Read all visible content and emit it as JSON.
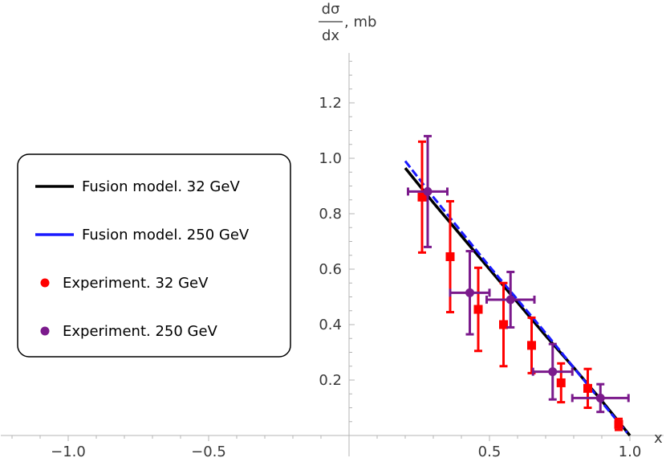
{
  "chart_data": {
    "type": "scatter",
    "xlabel": "x",
    "ylabel": {
      "numerator": "dσ",
      "denominator": "dx",
      "unit": ", mb"
    },
    "xlim": [
      -1.24,
      1.12
    ],
    "ylim": [
      0,
      1.38
    ],
    "x_ticks": [
      {
        "value": -1.0,
        "label": "−1.0"
      },
      {
        "value": -0.5,
        "label": "−0.5"
      },
      {
        "value": 0.5,
        "label": "0.5"
      },
      {
        "value": 1.0,
        "label": "1.0"
      }
    ],
    "y_ticks": [
      {
        "value": 0.2,
        "label": "0.2"
      },
      {
        "value": 0.4,
        "label": "0.4"
      },
      {
        "value": 0.6,
        "label": "0.6"
      },
      {
        "value": 0.8,
        "label": "0.8"
      },
      {
        "value": 1.0,
        "label": "1.0"
      },
      {
        "value": 1.2,
        "label": "1.2"
      }
    ],
    "grid": false,
    "legend_position": "left",
    "series": [
      {
        "name": "Fusion model. 32 GeV",
        "kind": "line",
        "color": "#000000",
        "dashed": false,
        "points": [
          [
            0.2,
            0.965
          ],
          [
            0.3,
            0.84
          ],
          [
            0.4,
            0.72
          ],
          [
            0.5,
            0.6
          ],
          [
            0.6,
            0.48
          ],
          [
            0.7,
            0.36
          ],
          [
            0.8,
            0.245
          ],
          [
            0.9,
            0.125
          ],
          [
            1.0,
            0.0
          ]
        ]
      },
      {
        "name": "Fusion model. 250 GeV",
        "kind": "line",
        "color": "#1a1aff",
        "dashed": true,
        "points": [
          [
            0.2,
            0.99
          ],
          [
            0.3,
            0.86
          ],
          [
            0.4,
            0.735
          ],
          [
            0.5,
            0.61
          ],
          [
            0.6,
            0.49
          ],
          [
            0.7,
            0.37
          ],
          [
            0.8,
            0.245
          ],
          [
            0.9,
            0.12
          ],
          [
            0.99,
            0.01
          ]
        ]
      },
      {
        "name": "Experiment. 32 GeV",
        "kind": "errorbar",
        "marker": "square",
        "color": "#ff0000",
        "points": [
          {
            "x": 0.26,
            "y": 0.86,
            "yerr": 0.2
          },
          {
            "x": 0.36,
            "y": 0.645,
            "yerr": 0.2
          },
          {
            "x": 0.46,
            "y": 0.455,
            "yerr": 0.15
          },
          {
            "x": 0.55,
            "y": 0.4,
            "yerr": 0.15
          },
          {
            "x": 0.65,
            "y": 0.325,
            "yerr": 0.1
          },
          {
            "x": 0.755,
            "y": 0.19,
            "yerr": 0.07
          },
          {
            "x": 0.85,
            "y": 0.17,
            "yerr": 0.07
          },
          {
            "x": 0.96,
            "y": 0.04,
            "yerr": 0.02
          }
        ]
      },
      {
        "name": "Experiment. 250 GeV",
        "kind": "errorbar",
        "marker": "circle",
        "color": "#7b1a8c",
        "points": [
          {
            "x": 0.28,
            "y": 0.88,
            "yerr": 0.2,
            "xerr": 0.07
          },
          {
            "x": 0.43,
            "y": 0.515,
            "yerr": 0.15,
            "xerr": 0.07
          },
          {
            "x": 0.575,
            "y": 0.49,
            "yerr": 0.1,
            "xerr": 0.085
          },
          {
            "x": 0.725,
            "y": 0.23,
            "yerr": 0.1,
            "xerr": 0.07
          },
          {
            "x": 0.895,
            "y": 0.135,
            "yerr": 0.05,
            "xerr": 0.1
          }
        ]
      }
    ]
  }
}
